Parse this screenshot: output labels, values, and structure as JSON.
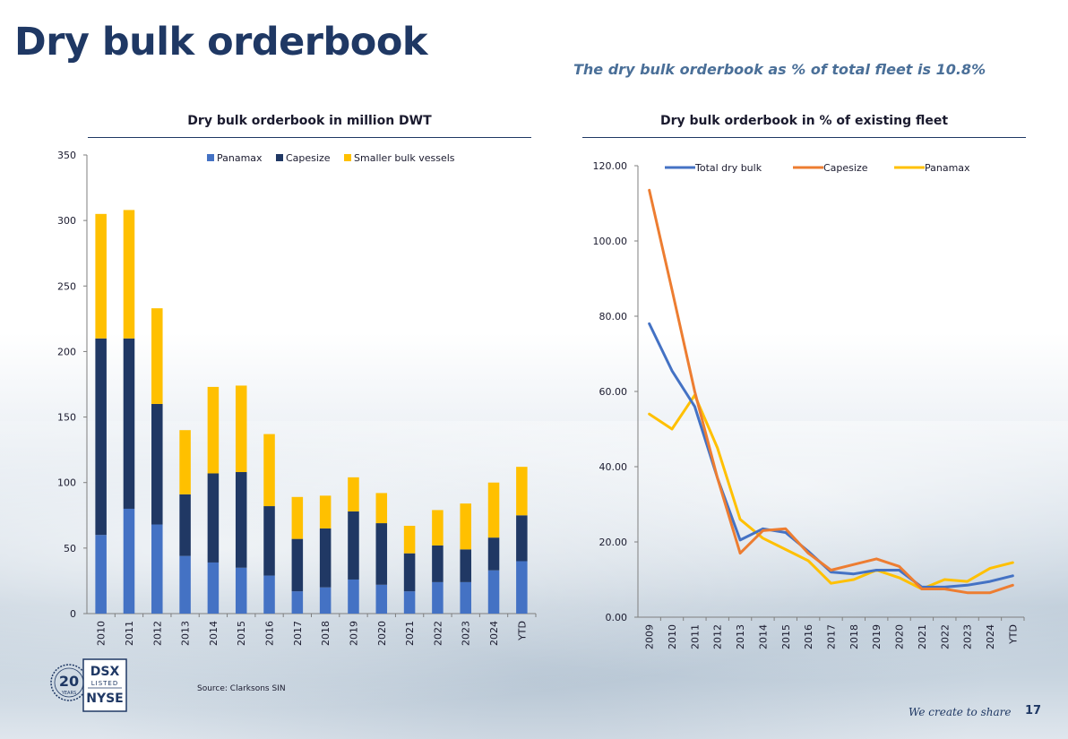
{
  "page": {
    "title": "Dry bulk orderbook",
    "subtitle": "The dry bulk orderbook as % of total fleet is 10.8%",
    "source": "Source: Clarksons SIN",
    "tagline": "We create to share",
    "page_number": "17",
    "logo": {
      "years": "20",
      "years_word": "YEARS",
      "line1": "DSX",
      "line2": "LISTED",
      "line3": "NYSE"
    }
  },
  "colors": {
    "title": "#1f3864",
    "panamax_bar": "#4472c4",
    "capesize_bar": "#203864",
    "smaller_bar": "#ffc000",
    "total_line": "#4472c4",
    "capesize_line": "#ed7d31",
    "panamax_line": "#ffc000"
  },
  "chart_data": [
    {
      "type": "bar",
      "stacked": true,
      "title": "Dry bulk orderbook in million DWT",
      "categories": [
        "2010",
        "2011",
        "2012",
        "2013",
        "2014",
        "2015",
        "2016",
        "2017",
        "2018",
        "2019",
        "2020",
        "2021",
        "2022",
        "2023",
        "2024",
        "YTD"
      ],
      "series": [
        {
          "name": "Panamax",
          "values": [
            60,
            80,
            68,
            44,
            39,
            35,
            29,
            17,
            20,
            26,
            22,
            17,
            24,
            24,
            33,
            40
          ]
        },
        {
          "name": "Capesize",
          "values": [
            150,
            130,
            92,
            47,
            68,
            73,
            53,
            40,
            45,
            52,
            47,
            29,
            28,
            25,
            25,
            35
          ]
        },
        {
          "name": "Smaller bulk vessels",
          "values": [
            95,
            98,
            73,
            49,
            66,
            66,
            55,
            32,
            25,
            26,
            23,
            21,
            27,
            35,
            42,
            37
          ]
        }
      ],
      "ylim": [
        0,
        350
      ],
      "yticks": [
        "0",
        "50",
        "100",
        "150",
        "200",
        "250",
        "300",
        "350"
      ],
      "legend": "top"
    },
    {
      "type": "line",
      "title": "Dry bulk orderbook in % of existing fleet",
      "categories": [
        "2009",
        "2010",
        "2011",
        "2012",
        "2013",
        "2014",
        "2015",
        "2016",
        "2017",
        "2018",
        "2019",
        "2020",
        "2021",
        "2022",
        "2023",
        "2024",
        "YTD"
      ],
      "series": [
        {
          "name": "Total dry bulk",
          "values": [
            78.0,
            65.5,
            56.0,
            37.0,
            20.5,
            23.5,
            22.5,
            17.5,
            12.0,
            11.5,
            12.5,
            12.5,
            8.0,
            8.0,
            8.5,
            9.5,
            11.0
          ]
        },
        {
          "name": "Capesize",
          "values": [
            113.5,
            87.0,
            60.0,
            37.0,
            17.0,
            23.0,
            23.5,
            17.0,
            12.5,
            14.0,
            15.5,
            13.5,
            7.5,
            7.5,
            6.5,
            6.5,
            8.5
          ]
        },
        {
          "name": "Panamax",
          "values": [
            54.0,
            50.0,
            59.0,
            45.0,
            26.0,
            21.0,
            18.0,
            15.0,
            9.0,
            10.0,
            12.5,
            10.5,
            7.5,
            10.0,
            9.5,
            13.0,
            14.5
          ]
        }
      ],
      "ylim": [
        0,
        120
      ],
      "yticks": [
        "0.00",
        "20.00",
        "40.00",
        "60.00",
        "80.00",
        "100.00",
        "120.00"
      ],
      "legend": "top"
    }
  ]
}
